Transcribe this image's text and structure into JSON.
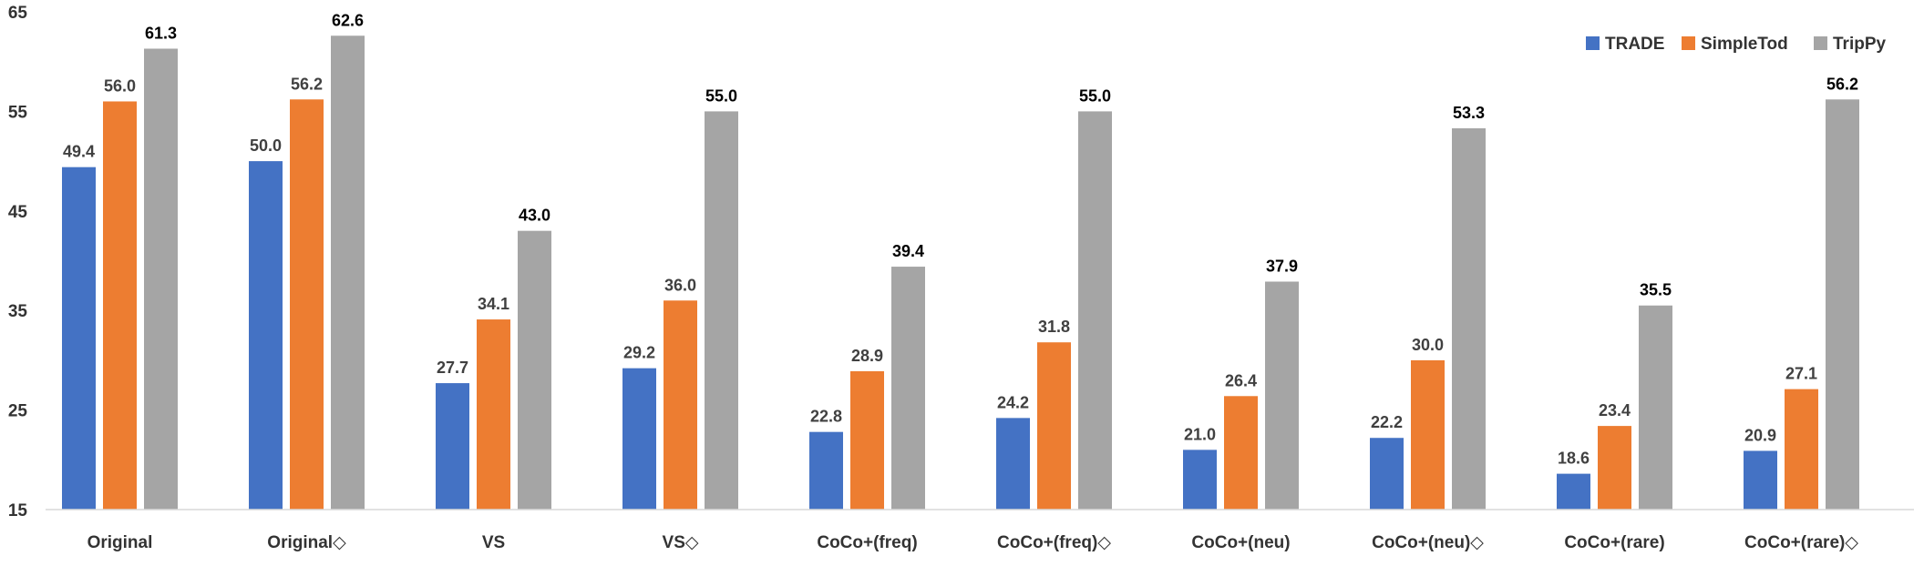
{
  "chart_data": {
    "type": "bar",
    "title": "",
    "xlabel": "",
    "ylabel": "",
    "ylim": [
      15,
      65
    ],
    "yticks": [
      15,
      25,
      35,
      45,
      55,
      65
    ],
    "grid": false,
    "legend_position": "top-right",
    "categories": [
      "Original",
      "Original◇",
      "VS",
      "VS◇",
      "CoCo+(freq)",
      "CoCo+(freq)◇",
      "CoCo+(neu)",
      "CoCo+(neu)◇",
      "CoCo+(rare)",
      "CoCo+(rare)◇"
    ],
    "series": [
      {
        "name": "TRADE",
        "color": "#4472C4",
        "values": [
          49.4,
          50.0,
          27.7,
          29.2,
          22.8,
          24.2,
          21.0,
          22.2,
          18.6,
          20.9
        ],
        "labels": [
          "49.4",
          "50.0",
          "27.7",
          "29.2",
          "22.8",
          "24.2",
          "21.0",
          "22.2",
          "18.6",
          "20.9"
        ]
      },
      {
        "name": "SimpleTod",
        "color": "#ED7D31",
        "values": [
          56.0,
          56.2,
          34.1,
          36.0,
          28.9,
          31.8,
          26.4,
          30.0,
          23.4,
          27.1
        ],
        "labels": [
          "56.0",
          "56.2",
          "34.1",
          "36.0",
          "28.9",
          "31.8",
          "26.4",
          "30.0",
          "23.4",
          "27.1"
        ]
      },
      {
        "name": "TripPy",
        "color": "#A5A5A5",
        "values": [
          61.3,
          62.6,
          43.0,
          55.0,
          39.4,
          55.0,
          37.9,
          53.3,
          35.5,
          56.2
        ],
        "labels": [
          "61.3",
          "62.6",
          "43.0",
          "55.0",
          "39.4",
          "55.0",
          "37.9",
          "53.3",
          "35.5",
          "56.2"
        ]
      }
    ]
  }
}
